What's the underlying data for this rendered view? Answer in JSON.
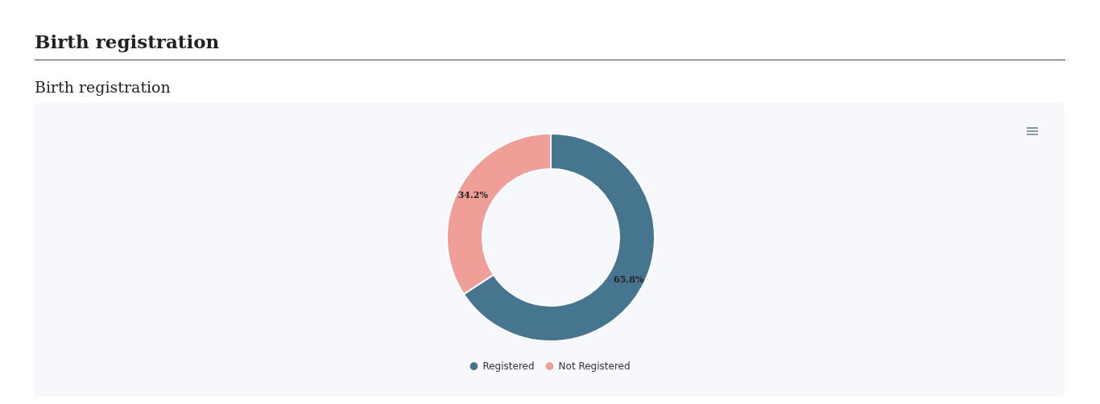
{
  "chart_data": {
    "type": "donut",
    "title": "Birth registration",
    "subtitle": "Birth registration",
    "categories": [
      "Registered",
      "Not Registered"
    ],
    "values": [
      65.8,
      34.2
    ],
    "colors": [
      "#46758f",
      "#ef9e98"
    ],
    "value_labels": [
      "65.8%",
      "34.2%"
    ],
    "legend": "bottom"
  }
}
